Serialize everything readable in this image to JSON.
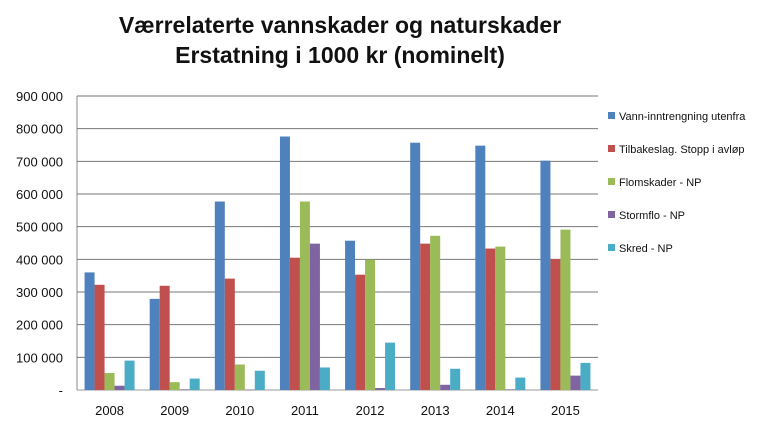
{
  "chart_data": {
    "type": "bar",
    "title": "Værrelaterte vannskader og naturskader",
    "subtitle": "Erstatning i 1000 kr (nominelt)",
    "categories": [
      "2008",
      "2009",
      "2010",
      "2011",
      "2012",
      "2013",
      "2014",
      "2015"
    ],
    "ylim": [
      0,
      900000
    ],
    "yticks": [
      0,
      100000,
      200000,
      300000,
      400000,
      500000,
      600000,
      700000,
      800000,
      900000
    ],
    "ytick_labels": [
      "-",
      "100 000",
      "200 000",
      "300 000",
      "400 000",
      "500 000",
      "600 000",
      "700 000",
      "800 000",
      "900 000"
    ],
    "grid": true,
    "legend_position": "right",
    "series": [
      {
        "name": "Vann-inntrengning utenfra",
        "color": "#4f81bd",
        "values": [
          360000,
          279000,
          577000,
          776000,
          457000,
          757000,
          748000,
          702000
        ]
      },
      {
        "name": "Tilbakeslag. Stopp i avløp",
        "color": "#c0504d",
        "values": [
          322000,
          319000,
          341000,
          405000,
          353000,
          448000,
          433000,
          401000
        ]
      },
      {
        "name": "Flomskader - NP",
        "color": "#9bbb59",
        "values": [
          52000,
          24000,
          78000,
          577000,
          399000,
          472000,
          439000,
          491000
        ]
      },
      {
        "name": "Stormflo - NP",
        "color": "#8064a2",
        "values": [
          13000,
          2000,
          1000,
          448000,
          6000,
          16000,
          2000,
          44000
        ]
      },
      {
        "name": "Skred - NP",
        "color": "#4bacc6",
        "values": [
          90000,
          35000,
          59000,
          69000,
          145000,
          65000,
          38000,
          83000
        ]
      }
    ]
  }
}
